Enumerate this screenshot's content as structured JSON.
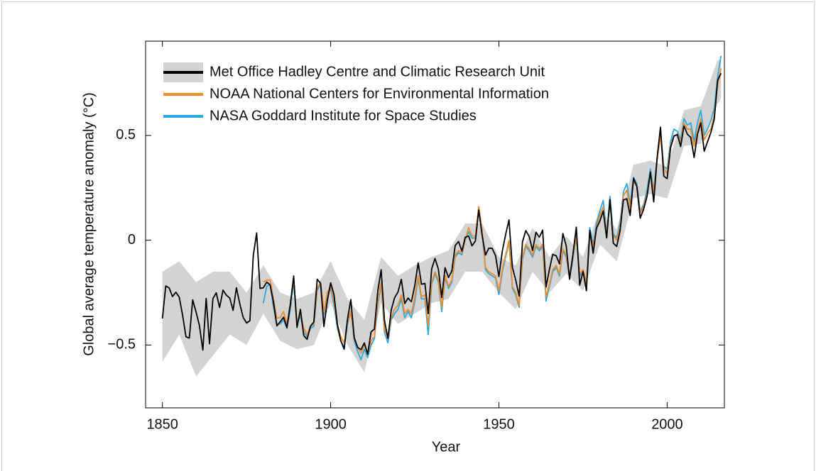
{
  "chart_data": {
    "type": "line",
    "xlabel": "Year",
    "ylabel": "Global average temperature anomaly (°C)",
    "xlim": [
      1845,
      2017
    ],
    "ylim": [
      -0.8,
      0.95
    ],
    "xticks": [
      1850,
      1900,
      1950,
      2000
    ],
    "yticks": [
      {
        "value": -0.5,
        "label": "−0.5"
      },
      0,
      0.5
    ],
    "legend": "upper left",
    "x": [
      1850,
      1851,
      1852,
      1853,
      1854,
      1855,
      1856,
      1857,
      1858,
      1859,
      1860,
      1861,
      1862,
      1863,
      1864,
      1865,
      1866,
      1867,
      1868,
      1869,
      1870,
      1871,
      1872,
      1873,
      1874,
      1875,
      1876,
      1877,
      1878,
      1879,
      1880,
      1881,
      1882,
      1883,
      1884,
      1885,
      1886,
      1887,
      1888,
      1889,
      1890,
      1891,
      1892,
      1893,
      1894,
      1895,
      1896,
      1897,
      1898,
      1899,
      1900,
      1901,
      1902,
      1903,
      1904,
      1905,
      1906,
      1907,
      1908,
      1909,
      1910,
      1911,
      1912,
      1913,
      1914,
      1915,
      1916,
      1917,
      1918,
      1919,
      1920,
      1921,
      1922,
      1923,
      1924,
      1925,
      1926,
      1927,
      1928,
      1929,
      1930,
      1931,
      1932,
      1933,
      1934,
      1935,
      1936,
      1937,
      1938,
      1939,
      1940,
      1941,
      1942,
      1943,
      1944,
      1945,
      1946,
      1947,
      1948,
      1949,
      1950,
      1951,
      1952,
      1953,
      1954,
      1955,
      1956,
      1957,
      1958,
      1959,
      1960,
      1961,
      1962,
      1963,
      1964,
      1965,
      1966,
      1967,
      1968,
      1969,
      1970,
      1971,
      1972,
      1973,
      1974,
      1975,
      1976,
      1977,
      1978,
      1979,
      1980,
      1981,
      1982,
      1983,
      1984,
      1985,
      1986,
      1987,
      1988,
      1989,
      1990,
      1991,
      1992,
      1993,
      1994,
      1995,
      1996,
      1997,
      1998,
      1999,
      2000,
      2001,
      2002,
      2003,
      2004,
      2005,
      2006,
      2007,
      2008,
      2009,
      2010,
      2011,
      2012,
      2013,
      2014,
      2015,
      2016
    ],
    "series": [
      {
        "name": "Met Office Hadley Centre and Climatic Research Unit",
        "color": "#000000",
        "values": [
          -0.373,
          -0.218,
          -0.228,
          -0.269,
          -0.248,
          -0.272,
          -0.358,
          -0.461,
          -0.467,
          -0.284,
          -0.343,
          -0.407,
          -0.524,
          -0.278,
          -0.494,
          -0.279,
          -0.251,
          -0.321,
          -0.238,
          -0.262,
          -0.276,
          -0.335,
          -0.227,
          -0.304,
          -0.368,
          -0.395,
          -0.384,
          -0.075,
          0.035,
          -0.23,
          -0.227,
          -0.2,
          -0.213,
          -0.296,
          -0.409,
          -0.389,
          -0.367,
          -0.418,
          -0.307,
          -0.171,
          -0.416,
          -0.33,
          -0.455,
          -0.473,
          -0.41,
          -0.39,
          -0.186,
          -0.206,
          -0.412,
          -0.289,
          -0.203,
          -0.259,
          -0.402,
          -0.479,
          -0.52,
          -0.377,
          -0.283,
          -0.465,
          -0.511,
          -0.522,
          -0.49,
          -0.544,
          -0.437,
          -0.424,
          -0.244,
          -0.141,
          -0.383,
          -0.468,
          -0.333,
          -0.275,
          -0.247,
          -0.187,
          -0.302,
          -0.276,
          -0.294,
          -0.215,
          -0.108,
          -0.21,
          -0.206,
          -0.35,
          -0.137,
          -0.087,
          -0.137,
          -0.273,
          -0.131,
          -0.178,
          -0.147,
          -0.026,
          -0.006,
          -0.052,
          0.014,
          0.02,
          -0.027,
          -0.004,
          0.144,
          0.025,
          -0.071,
          -0.038,
          -0.039,
          -0.074,
          -0.173,
          -0.052,
          0.028,
          0.097,
          -0.129,
          -0.19,
          -0.267,
          -0.007,
          0.046,
          0.017,
          -0.049,
          0.038,
          0.014,
          0.048,
          -0.223,
          -0.14,
          -0.068,
          -0.074,
          -0.113,
          0.032,
          -0.027,
          -0.186,
          -0.065,
          0.062,
          -0.214,
          -0.149,
          -0.241,
          0.047,
          -0.062,
          0.057,
          0.092,
          0.14,
          0.011,
          0.194,
          -0.014,
          -0.03,
          0.045,
          0.192,
          0.198,
          0.118,
          0.296,
          0.254,
          0.105,
          0.148,
          0.208,
          0.325,
          0.183,
          0.39,
          0.539,
          0.306,
          0.294,
          0.441,
          0.496,
          0.505,
          0.447,
          0.545,
          0.506,
          0.491,
          0.395,
          0.506,
          0.56,
          0.425,
          0.47,
          0.514,
          0.579,
          0.763,
          0.797
        ]
      },
      {
        "name": "NOAA National Centers for Environmental Information",
        "color": "#f28c28",
        "values": [
          null,
          null,
          null,
          null,
          null,
          null,
          null,
          null,
          null,
          null,
          null,
          null,
          null,
          null,
          null,
          null,
          null,
          null,
          null,
          null,
          null,
          null,
          null,
          null,
          null,
          null,
          null,
          null,
          null,
          null,
          -0.2,
          -0.19,
          -0.19,
          -0.28,
          -0.37,
          -0.37,
          -0.34,
          -0.4,
          -0.3,
          -0.19,
          -0.39,
          -0.35,
          -0.42,
          -0.45,
          -0.41,
          -0.4,
          -0.23,
          -0.2,
          -0.34,
          -0.25,
          -0.22,
          -0.29,
          -0.4,
          -0.46,
          -0.49,
          -0.39,
          -0.34,
          -0.47,
          -0.51,
          -0.54,
          -0.5,
          -0.54,
          -0.48,
          -0.46,
          -0.29,
          -0.2,
          -0.42,
          -0.47,
          -0.37,
          -0.33,
          -0.31,
          -0.26,
          -0.35,
          -0.33,
          -0.35,
          -0.27,
          -0.17,
          -0.27,
          -0.26,
          -0.41,
          -0.2,
          -0.15,
          -0.19,
          -0.32,
          -0.17,
          -0.22,
          -0.19,
          -0.07,
          -0.05,
          -0.06,
          0.0,
          0.06,
          0.02,
          0.02,
          0.16,
          0.05,
          -0.13,
          -0.15,
          -0.16,
          -0.17,
          -0.24,
          -0.14,
          -0.07,
          0.0,
          -0.22,
          -0.25,
          -0.31,
          -0.08,
          -0.02,
          -0.04,
          -0.07,
          -0.02,
          -0.04,
          -0.02,
          -0.27,
          -0.21,
          -0.14,
          -0.12,
          -0.16,
          -0.04,
          -0.07,
          -0.17,
          -0.08,
          0.02,
          -0.16,
          -0.14,
          -0.2,
          0.04,
          -0.03,
          0.06,
          0.12,
          0.16,
          0.02,
          0.18,
          0.02,
          0.0,
          0.06,
          0.21,
          0.24,
          0.16,
          0.28,
          0.26,
          0.13,
          0.16,
          0.22,
          0.32,
          0.23,
          0.38,
          0.5,
          0.34,
          0.32,
          0.45,
          0.5,
          0.5,
          0.47,
          0.56,
          0.53,
          0.53,
          0.45,
          0.52,
          0.58,
          0.48,
          0.51,
          0.53,
          0.6,
          0.74,
          0.82
        ]
      },
      {
        "name": "NASA Goddard Institute for Space Studies",
        "color": "#29a8e0",
        "values": [
          null,
          null,
          null,
          null,
          null,
          null,
          null,
          null,
          null,
          null,
          null,
          null,
          null,
          null,
          null,
          null,
          null,
          null,
          null,
          null,
          null,
          null,
          null,
          null,
          null,
          null,
          null,
          null,
          null,
          null,
          -0.3,
          -0.22,
          -0.21,
          -0.32,
          -0.4,
          -0.4,
          -0.38,
          -0.42,
          -0.33,
          -0.2,
          -0.4,
          -0.36,
          -0.44,
          -0.46,
          -0.42,
          -0.41,
          -0.24,
          -0.21,
          -0.35,
          -0.26,
          -0.23,
          -0.31,
          -0.42,
          -0.48,
          -0.51,
          -0.4,
          -0.34,
          -0.48,
          -0.53,
          -0.57,
          -0.52,
          -0.56,
          -0.5,
          -0.47,
          -0.31,
          -0.21,
          -0.44,
          -0.49,
          -0.38,
          -0.35,
          -0.33,
          -0.28,
          -0.37,
          -0.34,
          -0.37,
          -0.29,
          -0.18,
          -0.28,
          -0.28,
          -0.45,
          -0.21,
          -0.16,
          -0.2,
          -0.34,
          -0.18,
          -0.23,
          -0.2,
          -0.08,
          -0.06,
          -0.07,
          0.0,
          0.04,
          0.01,
          0.01,
          0.15,
          0.04,
          -0.14,
          -0.16,
          -0.17,
          -0.18,
          -0.26,
          -0.15,
          -0.08,
          -0.01,
          -0.23,
          -0.26,
          -0.32,
          -0.09,
          -0.03,
          -0.05,
          -0.08,
          -0.03,
          -0.05,
          -0.03,
          -0.29,
          -0.22,
          -0.15,
          -0.13,
          -0.17,
          -0.05,
          -0.08,
          -0.18,
          -0.09,
          0.01,
          -0.17,
          -0.15,
          -0.21,
          0.06,
          -0.02,
          0.08,
          0.14,
          0.19,
          0.03,
          0.21,
          0.03,
          0.01,
          0.08,
          0.23,
          0.27,
          0.17,
          0.3,
          0.27,
          0.14,
          0.17,
          0.24,
          0.34,
          0.24,
          0.39,
          0.52,
          0.35,
          0.34,
          0.47,
          0.53,
          0.52,
          0.48,
          0.58,
          0.55,
          0.56,
          0.47,
          0.56,
          0.62,
          0.5,
          0.53,
          0.57,
          0.63,
          0.78,
          0.88
        ]
      }
    ],
    "band": {
      "color": "#d3d3d3",
      "x": [
        1850,
        1855,
        1860,
        1865,
        1870,
        1875,
        1880,
        1885,
        1890,
        1895,
        1900,
        1905,
        1910,
        1915,
        1920,
        1925,
        1930,
        1935,
        1940,
        1945,
        1950,
        1955,
        1960,
        1965,
        1970,
        1975,
        1980,
        1985,
        1990,
        1995,
        2000,
        2005,
        2010,
        2015,
        2016
      ],
      "upper": [
        -0.15,
        -0.1,
        -0.2,
        -0.15,
        -0.15,
        -0.25,
        -0.12,
        -0.25,
        -0.28,
        -0.25,
        -0.1,
        -0.28,
        -0.38,
        -0.08,
        -0.17,
        -0.12,
        -0.08,
        -0.05,
        0.08,
        0.08,
        -0.08,
        -0.12,
        0.06,
        -0.08,
        0.02,
        -0.08,
        0.15,
        0.05,
        0.36,
        0.38,
        0.35,
        0.62,
        0.64,
        0.86,
        0.86
      ],
      "lower": [
        -0.58,
        -0.45,
        -0.65,
        -0.55,
        -0.45,
        -0.5,
        -0.35,
        -0.48,
        -0.52,
        -0.5,
        -0.3,
        -0.5,
        -0.63,
        -0.3,
        -0.4,
        -0.35,
        -0.3,
        -0.28,
        -0.15,
        -0.15,
        -0.25,
        -0.33,
        -0.15,
        -0.25,
        -0.16,
        -0.24,
        -0.02,
        -0.1,
        0.2,
        0.22,
        0.2,
        0.45,
        0.46,
        0.65,
        0.68
      ]
    }
  }
}
